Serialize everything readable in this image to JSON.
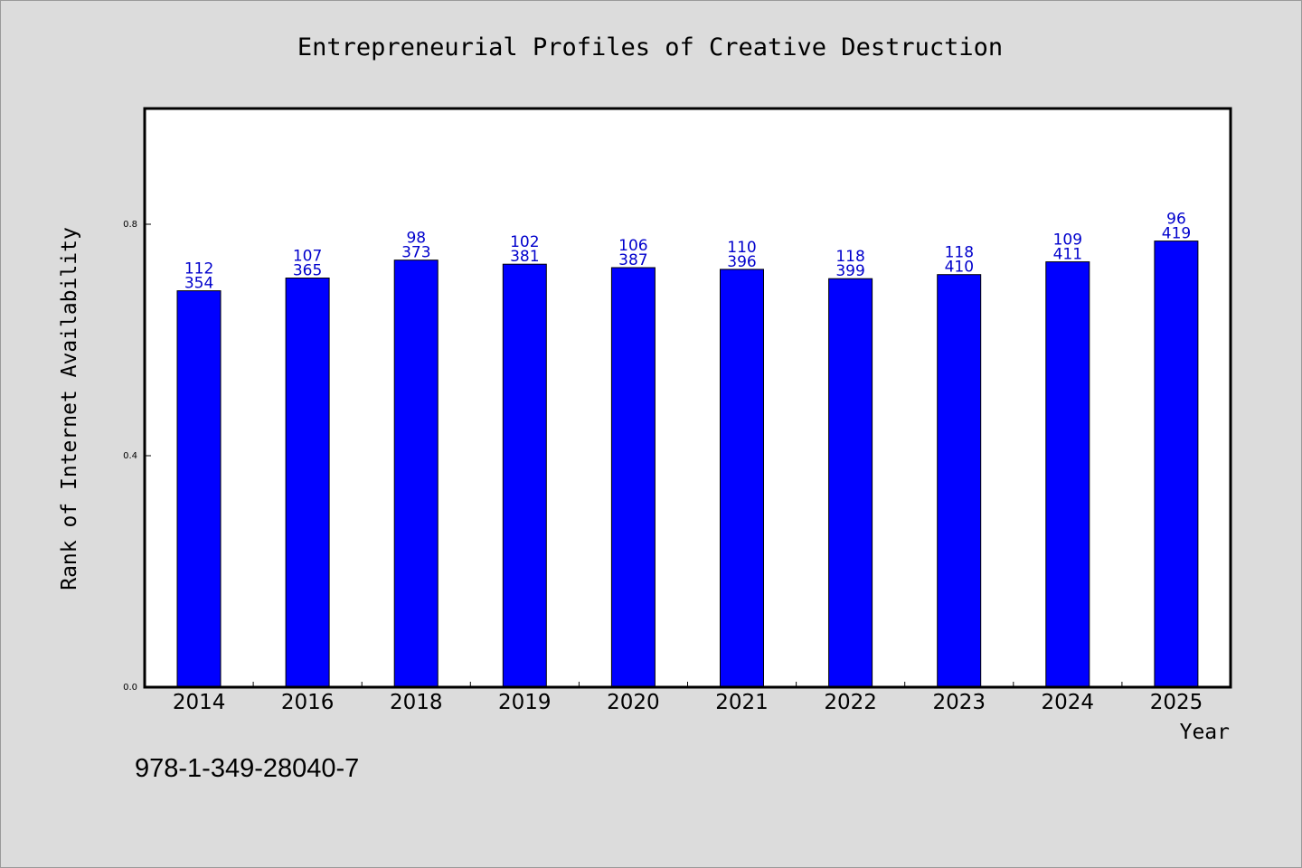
{
  "chart_data": {
    "type": "bar",
    "title": "Entrepreneurial Profiles of Creative Destruction",
    "xlabel": "Year",
    "ylabel": "Rank of Internet Availability",
    "categories": [
      "2014",
      "2016",
      "2018",
      "2019",
      "2020",
      "2021",
      "2022",
      "2023",
      "2024",
      "2025"
    ],
    "values": [
      0.685,
      0.707,
      0.738,
      0.731,
      0.725,
      0.722,
      0.706,
      0.713,
      0.735,
      0.771
    ],
    "bar_labels_top": [
      "112",
      "107",
      "98",
      "102",
      "106",
      "110",
      "118",
      "118",
      "109",
      "96"
    ],
    "bar_labels_bottom": [
      "354",
      "365",
      "373",
      "381",
      "387",
      "396",
      "399",
      "410",
      "411",
      "419"
    ],
    "ylim": [
      0,
      1.0
    ],
    "yticks": [
      0.0,
      0.4,
      0.8
    ],
    "ytick_labels": [
      "0.0",
      "0.4",
      "0.8"
    ],
    "grid": false,
    "colors": {
      "bar": "#0000ff",
      "label": "#0000cc",
      "background": "#dcdcdc",
      "plot_background": "#ffffff"
    }
  },
  "footer": {
    "isbn": "978-1-349-28040-7"
  }
}
